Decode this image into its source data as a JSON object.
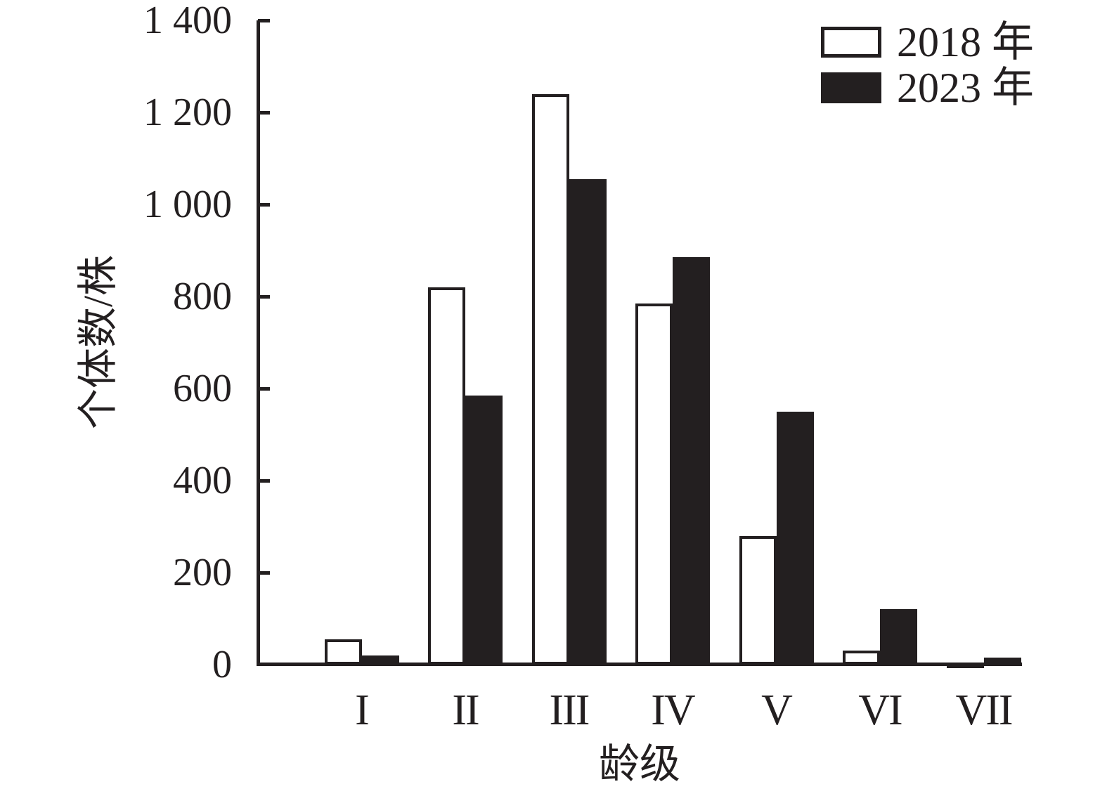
{
  "chart_data": {
    "type": "bar",
    "title": "",
    "xlabel": "龄级",
    "ylabel": "个体数/株",
    "categories": [
      "I",
      "II",
      "III",
      "IV",
      "V",
      "VI",
      "VII"
    ],
    "series": [
      {
        "name": "2018 年",
        "fill": "#ffffff",
        "values": [
          55,
          820,
          1240,
          785,
          280,
          30,
          5
        ]
      },
      {
        "name": "2023 年",
        "fill": "#231f20",
        "values": [
          20,
          585,
          1055,
          885,
          550,
          120,
          15
        ]
      }
    ],
    "ylim": [
      0,
      1400
    ],
    "ytick_step": 200,
    "ytick_labels": [
      "0",
      "200",
      "400",
      "600",
      "800",
      "1 000",
      "1 200",
      "1 400"
    ],
    "grid": false,
    "legend_position": "top-right",
    "axis_color": "#231f20",
    "bar_outline_color": "#231f20"
  }
}
